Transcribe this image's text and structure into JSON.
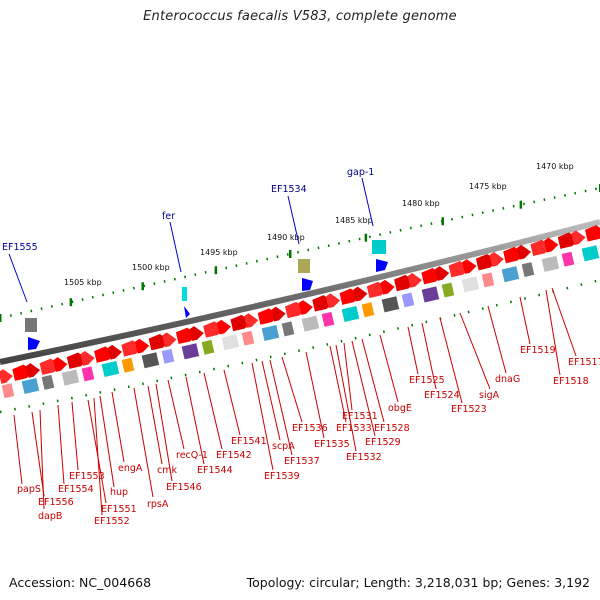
{
  "title": "Enterococcus faecalis V583, complete genome",
  "footer": {
    "accession": "Accession: NC_004668",
    "summary": "Topology: circular; Length: 3,218,031 bp; Genes: 3,192"
  },
  "scale_labels": [
    "1470 kbp",
    "1475 kbp",
    "1480 kbp",
    "1485 kbp",
    "1490 kbp",
    "1495 kbp",
    "1500 kbp",
    "1505 kbp"
  ],
  "upper_labels": [
    "EF1555",
    "fer",
    "EF1534",
    "gap-1"
  ],
  "lower_labels": [
    "papS",
    "EF1556",
    "dapB",
    "EF1554",
    "EF1553",
    "EF1551",
    "EF1552",
    "hup",
    "engA",
    "rpsA",
    "cmk",
    "EF1546",
    "recQ-1",
    "EF1544",
    "EF1542",
    "EF1541",
    "EF1539",
    "scpA",
    "EF1537",
    "EF1536",
    "EF1535",
    "EF1533",
    "EF1532",
    "EF1531",
    "EF1529",
    "EF1528",
    "obgE",
    "EF1525",
    "EF1524",
    "EF1523",
    "sigA",
    "dnaG",
    "EF1519",
    "EF1518",
    "EF1517"
  ],
  "colors": {
    "gene": "#ff0000",
    "gene_alt": "#cc0000",
    "label_red": "#cc0000",
    "label_blue": "#00008b",
    "backbone": "#7a7a7a",
    "scale_dots": "#007700"
  }
}
